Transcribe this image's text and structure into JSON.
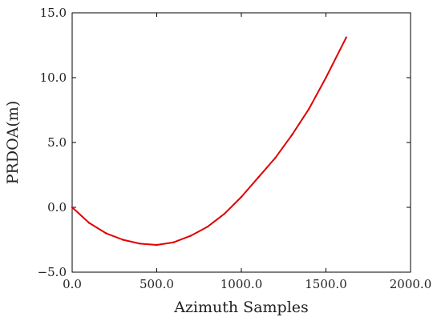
{
  "chart_data": {
    "type": "line",
    "xlabel": "Azimuth Samples",
    "ylabel": "PRDOA(m)",
    "xlim": [
      0,
      2000
    ],
    "ylim": [
      -5,
      15
    ],
    "xticks": [
      0,
      500,
      1000,
      1500,
      2000
    ],
    "yticks": [
      -5,
      0,
      5,
      10,
      15
    ],
    "xtick_labels": [
      "0.0",
      "500.0",
      "1000.0",
      "1500.0",
      "2000.0"
    ],
    "ytick_labels": [
      "−5.0",
      "0.0",
      "5.0",
      "10.0",
      "15.0"
    ],
    "grid": false,
    "series": [
      {
        "color": "#e00000",
        "x": [
          0,
          100,
          200,
          300,
          400,
          500,
          600,
          700,
          800,
          900,
          1000,
          1100,
          1200,
          1300,
          1400,
          1500,
          1620
        ],
        "y": [
          0.0,
          -1.2,
          -2.0,
          -2.5,
          -2.8,
          -2.9,
          -2.7,
          -2.2,
          -1.5,
          -0.5,
          0.8,
          2.3,
          3.8,
          5.6,
          7.6,
          10.0,
          13.1
        ]
      }
    ]
  }
}
